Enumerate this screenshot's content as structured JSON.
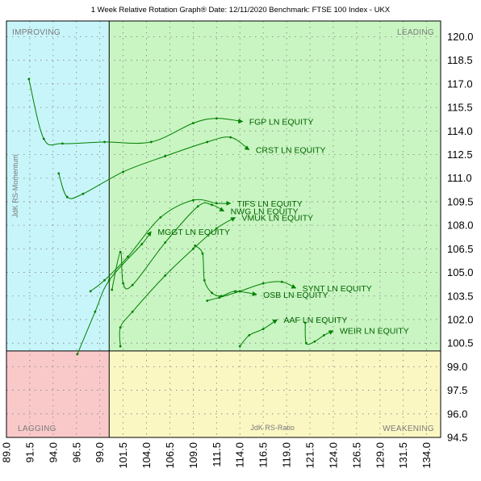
{
  "chart_data": {
    "type": "scatter",
    "title": "1 Week Relative Rotation Graph®    Date: 12/11/2020  Benchmark:  FTSE 100 Index - UKX",
    "xlabel": "JdK RS-Ratio",
    "ylabel": "JdK RS-Momentum",
    "xlim": [
      89.0,
      135.5
    ],
    "ylim": [
      94.5,
      121.0
    ],
    "x_ticks": [
      "89.0",
      "91.5",
      "94.0",
      "96.5",
      "99.0",
      "101.5",
      "104.0",
      "106.5",
      "109.0",
      "111.5",
      "114.0",
      "116.5",
      "119.0",
      "121.5",
      "124.0",
      "126.5",
      "129.0",
      "131.5",
      "134.0"
    ],
    "y_ticks": [
      "94.5",
      "96.0",
      "97.5",
      "99.0",
      "100.5",
      "102.0",
      "103.5",
      "105.0",
      "106.5",
      "108.0",
      "109.5",
      "111.0",
      "112.5",
      "114.0",
      "115.5",
      "117.0",
      "118.5",
      "120.0"
    ],
    "center": {
      "x": 100.0,
      "y": 100.0
    },
    "grid": true,
    "quadrants": {
      "improving": {
        "label": "IMPROVING",
        "color": "#c8f5fa"
      },
      "leading": {
        "label": "LEADING",
        "color": "#c9f5c2"
      },
      "lagging": {
        "label": "LAGGING",
        "color": "#f9c9c9"
      },
      "weakening": {
        "label": "WEAKENING",
        "color": "#fbf7c3"
      }
    },
    "tail_color": "#008000",
    "label_color": "#006400",
    "series": [
      {
        "name": "FGP LN EQUITY",
        "points": [
          [
            91.4,
            117.3
          ],
          [
            93.0,
            113.5
          ],
          [
            95.0,
            113.2
          ],
          [
            99.5,
            113.3
          ],
          [
            104.5,
            113.3
          ],
          [
            109.0,
            114.5
          ],
          [
            111.5,
            114.8
          ],
          [
            114.3,
            114.6
          ]
        ]
      },
      {
        "name": "CRST LN EQUITY",
        "points": [
          [
            94.6,
            111.3
          ],
          [
            95.5,
            109.8
          ],
          [
            97.2,
            110.0
          ],
          [
            101.5,
            111.4
          ],
          [
            106.0,
            112.4
          ],
          [
            110.5,
            113.3
          ],
          [
            113.0,
            113.6
          ],
          [
            115.0,
            112.8
          ]
        ]
      },
      {
        "name": "TIFS LN EQUITY",
        "points": [
          [
            98.0,
            103.8
          ],
          [
            99.5,
            104.5
          ],
          [
            102.0,
            106.0
          ],
          [
            105.5,
            108.5
          ],
          [
            109.0,
            109.6
          ],
          [
            111.5,
            109.4
          ],
          [
            113.0,
            109.4
          ]
        ]
      },
      {
        "name": "NWG LN EQUITY",
        "points": [
          [
            100.3,
            103.9
          ],
          [
            101.2,
            106.3
          ],
          [
            101.5,
            104.3
          ],
          [
            102.5,
            104.2
          ],
          [
            106.0,
            106.9
          ],
          [
            109.5,
            109.2
          ],
          [
            111.0,
            109.3
          ],
          [
            112.3,
            108.9
          ]
        ]
      },
      {
        "name": "MGGT LN EQUITY",
        "points": [
          [
            96.6,
            99.8
          ],
          [
            98.5,
            102.5
          ],
          [
            100.0,
            104.5
          ],
          [
            103.5,
            106.8
          ],
          [
            104.5,
            107.6
          ]
        ]
      },
      {
        "name": "VMUK LN EQUITY",
        "points": [
          [
            101.2,
            100.3
          ],
          [
            101.2,
            101.5
          ],
          [
            102.5,
            102.5
          ],
          [
            106.0,
            104.8
          ],
          [
            109.0,
            106.5
          ],
          [
            111.5,
            107.8
          ],
          [
            113.5,
            108.5
          ]
        ]
      },
      {
        "name": "SYNT LN EQUITY",
        "points": [
          [
            110.5,
            103.2
          ],
          [
            111.8,
            103.4
          ],
          [
            114.0,
            103.8
          ],
          [
            116.5,
            104.3
          ],
          [
            118.5,
            104.4
          ],
          [
            120.0,
            104.0
          ]
        ]
      },
      {
        "name": "OSB LN EQUITY",
        "points": [
          [
            109.2,
            106.7
          ],
          [
            110.0,
            106.2
          ],
          [
            110.2,
            104.5
          ],
          [
            111.0,
            103.7
          ],
          [
            112.0,
            103.5
          ],
          [
            113.5,
            103.8
          ],
          [
            115.8,
            103.6
          ]
        ]
      },
      {
        "name": "AAF LN EQUITY",
        "points": [
          [
            114.0,
            100.3
          ],
          [
            115.0,
            101.0
          ],
          [
            116.5,
            101.4
          ],
          [
            118.0,
            102.0
          ]
        ]
      },
      {
        "name": "WEIR LN EQUITY",
        "points": [
          [
            121.0,
            101.8
          ],
          [
            121.1,
            100.5
          ],
          [
            122.0,
            100.6
          ],
          [
            123.0,
            101.0
          ],
          [
            124.0,
            101.3
          ]
        ]
      }
    ]
  }
}
